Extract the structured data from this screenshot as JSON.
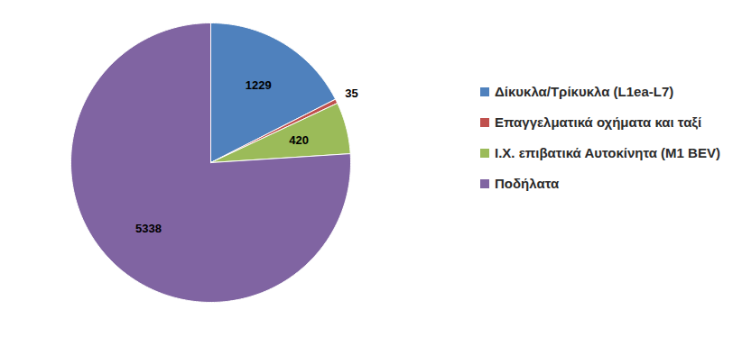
{
  "chart_data": {
    "type": "pie",
    "categories": [
      "Δίκυκλα/Τρίκυκλα (L1ea-L7)",
      "Επαγγελματικά οχήματα και ταξί",
      "Ι.Χ. επιβατικά Αυτοκίνητα (M1 BEV)",
      "Ποδήλατα"
    ],
    "values": [
      1229,
      35,
      420,
      5338
    ],
    "colors": [
      "#4f81bd",
      "#c0504d",
      "#9bbb59",
      "#8064a2"
    ],
    "data_labels": true,
    "legend": "right"
  }
}
